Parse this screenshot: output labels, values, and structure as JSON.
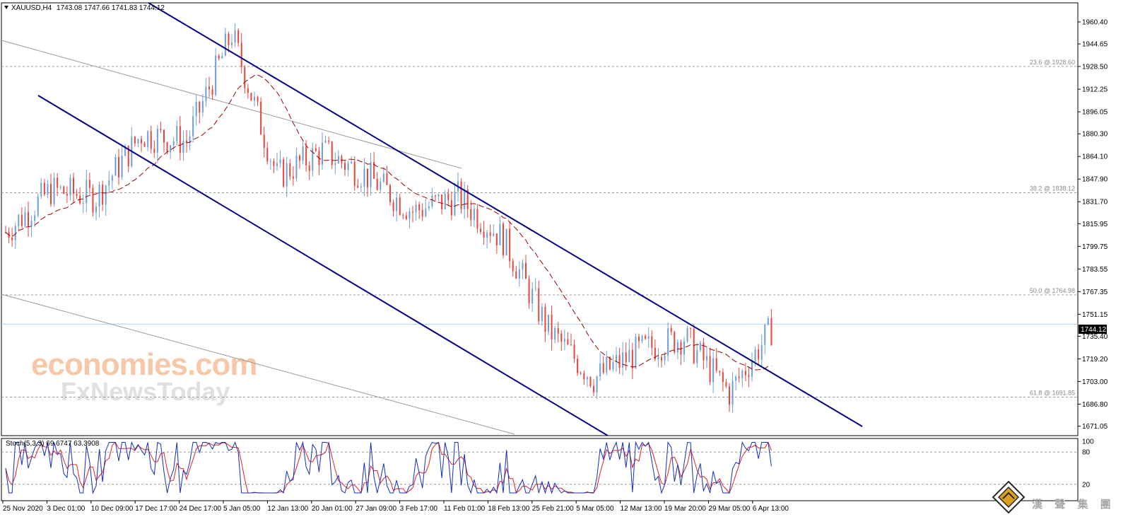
{
  "header": {
    "symbol": "XAUUSD,H4",
    "ohlc": "1743.08 1747.66 1741.83 1744.12"
  },
  "price_axis": {
    "ticks": [
      "1960.40",
      "1944.65",
      "1928.50",
      "1912.25",
      "1896.05",
      "1880.30",
      "1864.10",
      "1847.90",
      "1831.70",
      "1815.95",
      "1799.75",
      "1783.55",
      "1767.35",
      "1751.15",
      "1735.40",
      "1719.20",
      "1703.00",
      "1686.80",
      "1671.05"
    ],
    "current_price_label": "1744.12"
  },
  "fib_levels": [
    {
      "label": "23.6 @ 1928.60",
      "value": 1928.6
    },
    {
      "label": "38.2 @ 1838.12",
      "value": 1838.12
    },
    {
      "label": "50.0 @ 1764.98",
      "value": 1764.98
    },
    {
      "label": "61.8 @ 1691.85",
      "value": 1691.85
    }
  ],
  "time_axis": [
    "25 Nov 2020",
    "3 Dec 01:00",
    "10 Dec 09:00",
    "17 Dec 17:00",
    "24 Dec 17:00",
    "5 Jan 05:00",
    "12 Jan 13:00",
    "20 Jan 01:00",
    "27 Jan 09:00",
    "3 Feb 17:00",
    "11 Feb 01:00",
    "18 Feb 13:00",
    "25 Feb 21:00",
    "5 Mar 05:00",
    "12 Mar 13:00",
    "19 Mar 20:00",
    "29 Mar 05:00",
    "6 Apr 13:00"
  ],
  "stoch": {
    "label": "Stoch(5,3,3) 69.6747 63.3908",
    "levels": [
      "100",
      "80",
      "20"
    ]
  },
  "watermark": {
    "brand1": "economies.com",
    "brand2": "FxNewsToday",
    "logo_text": "漢 聲 集 團"
  },
  "colors": {
    "bull": "#6f9fd8",
    "bear": "#e8443a",
    "channel": "#00008b",
    "ma": "#a00000",
    "stoch_main": "#1030c0",
    "stoch_signal": "#e02020",
    "grid_dash": "#9a9a9a",
    "price_line": "#a8d0e6"
  },
  "chart_data": {
    "type": "candlestick",
    "instrument": "XAUUSD",
    "timeframe": "H4",
    "current_price": 1744.12,
    "ylim": [
      1667,
      1968
    ],
    "price_path": [
      {
        "time": "25 Nov 2020",
        "price": 1810
      },
      {
        "time": "3 Dec 01:00",
        "price": 1840
      },
      {
        "time": "10 Dec 09:00",
        "price": 1835
      },
      {
        "time": "17 Dec 17:00",
        "price": 1880
      },
      {
        "time": "24 Dec 17:00",
        "price": 1875
      },
      {
        "time": "5 Jan 05:00",
        "price": 1952
      },
      {
        "time": "12 Jan 13:00",
        "price": 1850
      },
      {
        "time": "20 Jan 01:00",
        "price": 1868
      },
      {
        "time": "27 Jan 09:00",
        "price": 1850
      },
      {
        "time": "3 Feb 17:00",
        "price": 1825
      },
      {
        "time": "11 Feb 01:00",
        "price": 1835
      },
      {
        "time": "18 Feb 13:00",
        "price": 1805
      },
      {
        "time": "25 Feb 21:00",
        "price": 1740
      },
      {
        "time": "5 Mar 05:00",
        "price": 1705
      },
      {
        "time": "12 Mar 13:00",
        "price": 1725
      },
      {
        "time": "19 Mar 20:00",
        "price": 1735
      },
      {
        "time": "29 Mar 05:00",
        "price": 1695
      },
      {
        "time": "6 Apr 13:00",
        "price": 1744
      }
    ],
    "fibonacci": [
      {
        "level": 23.6,
        "price": 1928.6
      },
      {
        "level": 38.2,
        "price": 1838.12
      },
      {
        "level": 50.0,
        "price": 1764.98
      },
      {
        "level": 61.8,
        "price": 1691.85
      }
    ],
    "indicators": [
      {
        "name": "Stoch(5,3,3)",
        "main": 69.6747,
        "signal": 63.3908
      }
    ]
  }
}
